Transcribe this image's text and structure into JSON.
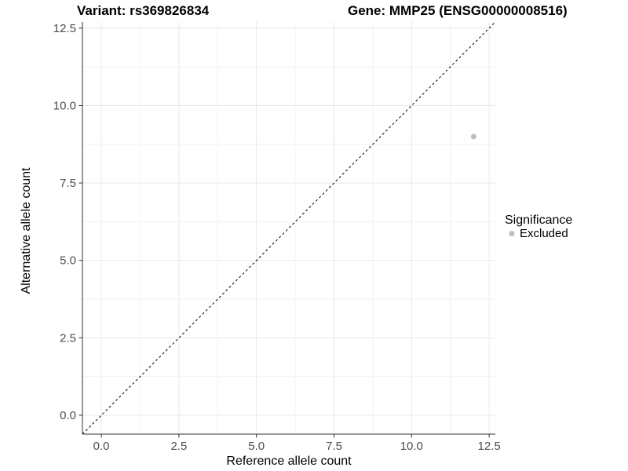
{
  "chart_data": {
    "type": "scatter",
    "title_left": "Variant: rs369826834",
    "title_right": "Gene: MMP25 (ENSG00000008516)",
    "xlabel": "Reference allele count",
    "ylabel": "Alternative allele count",
    "xlim": [
      -0.61,
      12.7
    ],
    "ylim": [
      -0.61,
      12.7
    ],
    "x_tick_values": [
      0,
      2.5,
      5,
      7.5,
      10,
      12.5
    ],
    "y_tick_values": [
      0,
      2.5,
      5,
      7.5,
      10,
      12.5
    ],
    "x_ticks": [
      "0.0",
      "2.5",
      "5.0",
      "7.5",
      "10.0",
      "12.5"
    ],
    "y_ticks": [
      "0.0",
      "2.5",
      "5.0",
      "7.5",
      "10.0",
      "12.5"
    ],
    "minor_tick_values": [
      1.25,
      3.75,
      6.25,
      8.75,
      11.25
    ],
    "grid": true,
    "reference_line": {
      "equation": "y = x",
      "style": "dashed",
      "color": "#000000"
    },
    "series": [
      {
        "name": "Excluded",
        "color": "#bdbdbd",
        "marker": "circle",
        "points": [
          [
            12,
            9
          ]
        ]
      }
    ],
    "legend": {
      "title": "Significance",
      "position": "right",
      "entries": [
        {
          "label": "Excluded",
          "color": "#bdbdbd",
          "marker": "circle"
        }
      ]
    },
    "style": {
      "background": "#ffffff",
      "grid_major_color": "#e8e8e8",
      "grid_minor_color": "#f2f2f2",
      "axis_color": "#333333",
      "tick_color": "#333333",
      "point_radius": 3.5
    }
  }
}
